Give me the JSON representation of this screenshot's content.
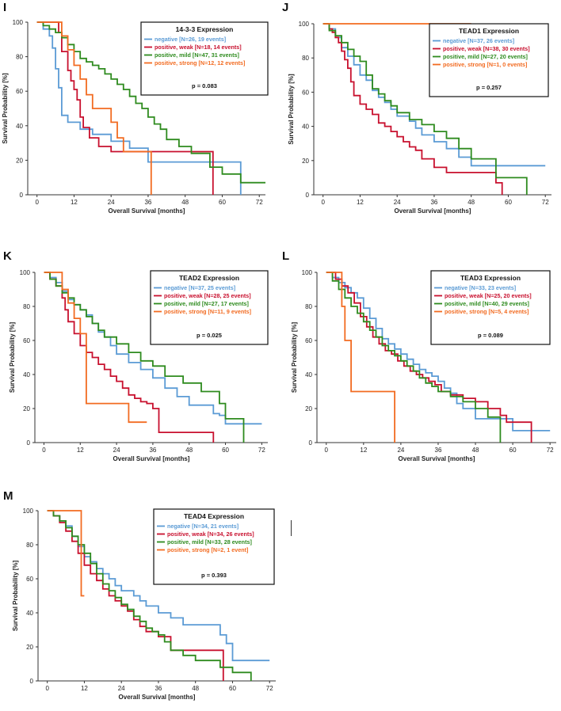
{
  "colors": {
    "negative": "#5b9bd5",
    "weak": "#c8102e",
    "mild": "#2e8b1e",
    "strong": "#f26b21"
  },
  "chart_data": [
    {
      "panel": "I",
      "type": "line",
      "title": "14-3-3 Expression",
      "xlabel": "Overall Survival [months]",
      "ylabel": "Survival Probability [%]",
      "xlim": [
        -3,
        74
      ],
      "ylim": [
        0,
        100
      ],
      "xticks": [
        "0",
        "12",
        "24",
        "36",
        "48",
        "60",
        "72"
      ],
      "yticks": [
        "0",
        "20",
        "40",
        "60",
        "80",
        "100"
      ],
      "legend_position": "top-right",
      "p_value": "p = 0.083",
      "series": [
        {
          "key": "negative",
          "name": "negative [N=26, 19 events]",
          "x": [
            0,
            2,
            4,
            5,
            6,
            7,
            8,
            10,
            12,
            14,
            18,
            24,
            30,
            36,
            48,
            60,
            66
          ],
          "y": [
            100,
            96,
            92,
            85,
            73,
            62,
            46,
            42,
            42,
            38,
            35,
            31,
            27,
            19,
            19,
            19,
            0
          ]
        },
        {
          "key": "weak",
          "name": "positive, weak [N=18, 14 events]",
          "x": [
            0,
            5,
            7,
            8,
            10,
            11,
            12,
            13,
            14,
            15,
            17,
            20,
            24,
            36,
            48,
            57
          ],
          "y": [
            100,
            100,
            94,
            83,
            72,
            66,
            61,
            55,
            45,
            39,
            33,
            28,
            25,
            25,
            25,
            0
          ]
        },
        {
          "key": "mild",
          "name": "positive, mild [N=47, 31 events]",
          "x": [
            0,
            2,
            4,
            6,
            8,
            10,
            12,
            14,
            16,
            18,
            20,
            22,
            24,
            26,
            28,
            30,
            32,
            34,
            36,
            38,
            40,
            42,
            46,
            50,
            56,
            60,
            66,
            74
          ],
          "y": [
            100,
            98,
            96,
            94,
            91,
            87,
            83,
            79,
            77,
            75,
            73,
            70,
            67,
            64,
            61,
            57,
            53,
            50,
            45,
            41,
            38,
            32,
            28,
            24,
            16,
            12,
            7,
            7
          ]
        },
        {
          "key": "strong",
          "name": "positive, strong [N=12, 12 events]",
          "x": [
            0,
            7,
            8,
            10,
            12,
            14,
            16,
            18,
            20,
            24,
            26,
            28,
            30,
            36,
            37
          ],
          "y": [
            100,
            100,
            92,
            84,
            75,
            67,
            58,
            50,
            50,
            42,
            33,
            25,
            25,
            25,
            0
          ]
        }
      ]
    },
    {
      "panel": "J",
      "type": "line",
      "title": "TEAD1 Expression",
      "xlabel": "Overall Survival [months]",
      "ylabel": "Survival Probability [%]",
      "xlim": [
        -3,
        74
      ],
      "ylim": [
        0,
        100
      ],
      "xticks": [
        "0",
        "12",
        "24",
        "36",
        "48",
        "60",
        "72"
      ],
      "yticks": [
        "0",
        "20",
        "40",
        "60",
        "80",
        "100"
      ],
      "legend_position": "top-right",
      "p_value": "p = 0.257",
      "series": [
        {
          "key": "negative",
          "name": "negative [N=37, 26 events]",
          "x": [
            0,
            2,
            4,
            6,
            8,
            10,
            12,
            14,
            16,
            18,
            20,
            22,
            24,
            28,
            30,
            32,
            36,
            40,
            44,
            48,
            72
          ],
          "y": [
            100,
            97,
            92,
            86,
            81,
            76,
            70,
            67,
            61,
            57,
            54,
            50,
            46,
            43,
            39,
            35,
            31,
            27,
            22,
            17,
            17
          ]
        },
        {
          "key": "weak",
          "name": "positive, weak [N=38, 30 events]",
          "x": [
            0,
            2,
            3,
            4,
            5,
            6,
            7,
            8,
            9,
            10,
            12,
            14,
            16,
            18,
            20,
            22,
            24,
            26,
            28,
            30,
            32,
            36,
            40,
            48,
            56,
            58
          ],
          "y": [
            100,
            97,
            95,
            92,
            89,
            84,
            79,
            74,
            66,
            58,
            53,
            50,
            47,
            42,
            40,
            37,
            34,
            31,
            28,
            26,
            21,
            16,
            13,
            13,
            7,
            0
          ]
        },
        {
          "key": "mild",
          "name": "positive, mild [N=27, 20 events]",
          "x": [
            0,
            2,
            4,
            6,
            8,
            10,
            12,
            14,
            16,
            18,
            20,
            22,
            24,
            28,
            32,
            36,
            40,
            44,
            48,
            56,
            60,
            66
          ],
          "y": [
            100,
            96,
            93,
            89,
            85,
            81,
            78,
            70,
            62,
            59,
            55,
            52,
            48,
            44,
            41,
            37,
            33,
            27,
            21,
            10,
            10,
            0
          ]
        },
        {
          "key": "strong",
          "name": "positive, strong [N=1, 0 events]",
          "x": [
            0,
            48
          ],
          "y": [
            100,
            100
          ]
        }
      ]
    },
    {
      "panel": "K",
      "type": "line",
      "title": "TEAD2 Expression",
      "xlabel": "Overall Survival [months]",
      "ylabel": "Survival Probability [%]",
      "xlim": [
        -3,
        74
      ],
      "ylim": [
        0,
        100
      ],
      "xticks": [
        "0",
        "12",
        "24",
        "36",
        "48",
        "60",
        "72"
      ],
      "yticks": [
        "0",
        "20",
        "40",
        "60",
        "80",
        "100"
      ],
      "legend_position": "top-right",
      "p_value": "p = 0.025",
      "series": [
        {
          "key": "negative",
          "name": "negative [N=37, 25 events]",
          "x": [
            0,
            2,
            4,
            6,
            8,
            10,
            12,
            14,
            16,
            18,
            20,
            22,
            24,
            28,
            32,
            36,
            40,
            44,
            48,
            56,
            58,
            60,
            72
          ],
          "y": [
            100,
            97,
            94,
            89,
            84,
            81,
            78,
            75,
            70,
            65,
            62,
            57,
            52,
            47,
            43,
            38,
            32,
            27,
            22,
            17,
            16,
            11,
            11
          ]
        },
        {
          "key": "weak",
          "name": "positive, weak [N=28, 25 events]",
          "x": [
            0,
            2,
            4,
            6,
            7,
            8,
            10,
            12,
            14,
            16,
            18,
            20,
            22,
            24,
            26,
            28,
            30,
            32,
            34,
            36,
            38,
            48,
            56
          ],
          "y": [
            100,
            96,
            92,
            85,
            78,
            71,
            64,
            57,
            53,
            50,
            46,
            43,
            39,
            36,
            32,
            28,
            26,
            24,
            23,
            20,
            6,
            6,
            0
          ]
        },
        {
          "key": "mild",
          "name": "positive, mild [N=27, 17 events]",
          "x": [
            0,
            2,
            4,
            6,
            8,
            10,
            12,
            14,
            16,
            18,
            20,
            24,
            28,
            32,
            36,
            40,
            46,
            52,
            58,
            60,
            66
          ],
          "y": [
            100,
            96,
            92,
            88,
            85,
            81,
            78,
            74,
            70,
            66,
            62,
            58,
            53,
            48,
            45,
            39,
            35,
            30,
            23,
            14,
            0
          ]
        },
        {
          "key": "strong",
          "name": "positive, strong [N=11, 9 events]",
          "x": [
            0,
            5,
            6,
            8,
            10,
            12,
            14,
            22,
            28,
            34
          ],
          "y": [
            100,
            100,
            90,
            82,
            73,
            64,
            23,
            23,
            12,
            12
          ]
        }
      ]
    },
    {
      "panel": "L",
      "type": "line",
      "title": "TEAD3 Expression",
      "xlabel": "Overall Survival [months]",
      "ylabel": "Survival Probability [%]",
      "xlim": [
        -3,
        74
      ],
      "ylim": [
        0,
        100
      ],
      "xticks": [
        "0",
        "12",
        "24",
        "36",
        "48",
        "60",
        "72"
      ],
      "yticks": [
        "0",
        "20",
        "40",
        "60",
        "80",
        "100"
      ],
      "legend_position": "top-right",
      "p_value": "p = 0.089",
      "series": [
        {
          "key": "negative",
          "name": "negative [N=33, 23 events]",
          "x": [
            0,
            2,
            4,
            6,
            8,
            10,
            12,
            14,
            16,
            18,
            20,
            22,
            24,
            26,
            28,
            30,
            32,
            34,
            36,
            38,
            40,
            42,
            44,
            48,
            60,
            72
          ],
          "y": [
            100,
            97,
            94,
            91,
            88,
            85,
            79,
            73,
            67,
            61,
            58,
            55,
            52,
            49,
            46,
            43,
            41,
            39,
            36,
            32,
            29,
            23,
            20,
            14,
            7,
            7
          ]
        },
        {
          "key": "weak",
          "name": "positive, weak [N=25, 20 events]",
          "x": [
            0,
            3,
            5,
            7,
            9,
            11,
            13,
            15,
            17,
            19,
            21,
            23,
            25,
            27,
            29,
            31,
            33,
            35,
            37,
            40,
            44,
            48,
            52,
            56,
            58,
            66
          ],
          "y": [
            100,
            96,
            92,
            88,
            82,
            74,
            68,
            62,
            58,
            54,
            52,
            48,
            45,
            42,
            40,
            38,
            36,
            34,
            30,
            28,
            26,
            24,
            20,
            16,
            12,
            0
          ]
        },
        {
          "key": "mild",
          "name": "positive, mild [N=40, 29 events]",
          "x": [
            0,
            2,
            4,
            6,
            8,
            10,
            12,
            14,
            16,
            18,
            20,
            22,
            24,
            26,
            28,
            30,
            32,
            34,
            36,
            40,
            44,
            48,
            52,
            56
          ],
          "y": [
            100,
            95,
            90,
            85,
            80,
            76,
            71,
            66,
            62,
            57,
            54,
            51,
            48,
            45,
            42,
            38,
            35,
            33,
            30,
            27,
            24,
            20,
            15,
            0
          ]
        },
        {
          "key": "strong",
          "name": "positive, strong [N=5, 4 events]",
          "x": [
            0,
            4,
            5,
            6,
            7,
            8,
            22
          ],
          "y": [
            100,
            100,
            80,
            60,
            60,
            30,
            0
          ]
        }
      ]
    },
    {
      "panel": "M",
      "type": "line",
      "title": "TEAD4 Expression",
      "xlabel": "Overall Survival [months]",
      "ylabel": "Survival Probability [%]",
      "xlim": [
        -3,
        74
      ],
      "ylim": [
        0,
        100
      ],
      "xticks": [
        "0",
        "12",
        "24",
        "36",
        "48",
        "60",
        "72"
      ],
      "yticks": [
        "0",
        "20",
        "40",
        "60",
        "80",
        "100"
      ],
      "legend_position": "top-right",
      "p_value": "p = 0.393",
      "series": [
        {
          "key": "negative",
          "name": "negative [N=34, 21 events]",
          "x": [
            0,
            2,
            4,
            6,
            8,
            10,
            12,
            14,
            16,
            18,
            20,
            22,
            24,
            28,
            30,
            32,
            36,
            40,
            44,
            48,
            56,
            58,
            60,
            72
          ],
          "y": [
            100,
            97,
            94,
            91,
            85,
            79,
            73,
            70,
            66,
            63,
            60,
            56,
            53,
            50,
            47,
            44,
            40,
            37,
            33,
            33,
            27,
            22,
            12,
            12
          ]
        },
        {
          "key": "weak",
          "name": "positive, weak [N=34, 26 events]",
          "x": [
            0,
            2,
            4,
            6,
            8,
            10,
            12,
            14,
            16,
            18,
            20,
            22,
            24,
            26,
            28,
            30,
            32,
            36,
            40,
            48,
            56,
            57
          ],
          "y": [
            100,
            97,
            93,
            88,
            82,
            75,
            68,
            63,
            59,
            54,
            50,
            47,
            44,
            41,
            36,
            32,
            29,
            26,
            18,
            18,
            18,
            0
          ]
        },
        {
          "key": "mild",
          "name": "positive, mild [N=33, 28 events]",
          "x": [
            0,
            2,
            4,
            6,
            8,
            10,
            12,
            14,
            16,
            18,
            20,
            22,
            24,
            26,
            28,
            30,
            32,
            34,
            36,
            38,
            40,
            44,
            48,
            56,
            60,
            66
          ],
          "y": [
            100,
            97,
            94,
            90,
            85,
            80,
            75,
            69,
            63,
            57,
            53,
            49,
            45,
            42,
            38,
            35,
            31,
            29,
            27,
            23,
            18,
            15,
            12,
            8,
            5,
            0
          ]
        },
        {
          "key": "strong",
          "name": "positive, strong [N=2, 1 event]",
          "x": [
            0,
            10,
            11,
            12
          ],
          "y": [
            100,
            100,
            50,
            50
          ]
        }
      ]
    }
  ]
}
